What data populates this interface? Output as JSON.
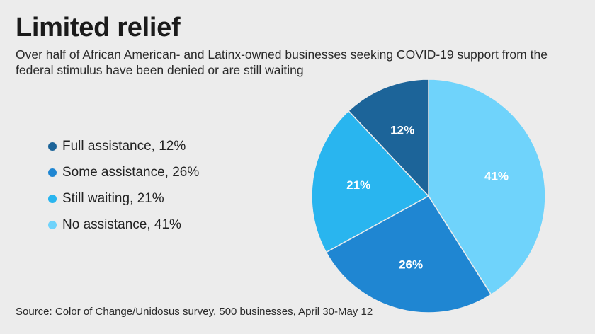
{
  "header": {
    "title": "Limited relief",
    "subtitle": "Over half of African American- and Latinx-owned businesses seeking COVID-19 support from the federal stimulus have been denied or are still waiting"
  },
  "legend": {
    "items": [
      {
        "label": "Full assistance, 12%",
        "color": "#1c6499"
      },
      {
        "label": "Some assistance, 26%",
        "color": "#1f86d2"
      },
      {
        "label": "Still waiting, 21%",
        "color": "#29b5ef"
      },
      {
        "label": "No assistance, 41%",
        "color": "#6fd3fb"
      }
    ]
  },
  "chart_data": {
    "type": "pie",
    "categories": [
      "Full assistance",
      "Some assistance",
      "Still waiting",
      "No assistance"
    ],
    "values": [
      12,
      26,
      21,
      41
    ],
    "labels": [
      "12%",
      "26%",
      "21%",
      "41%"
    ],
    "colors": [
      "#1c6499",
      "#1f86d2",
      "#29b5ef",
      "#6fd3fb"
    ],
    "unit": "%",
    "start": "12 o'clock",
    "direction": "clockwise from No assistance",
    "title": "Limited relief"
  },
  "footer": {
    "source": "Source: Color of Change/Unidosus survey, 500 businesses, April 30-May 12"
  }
}
